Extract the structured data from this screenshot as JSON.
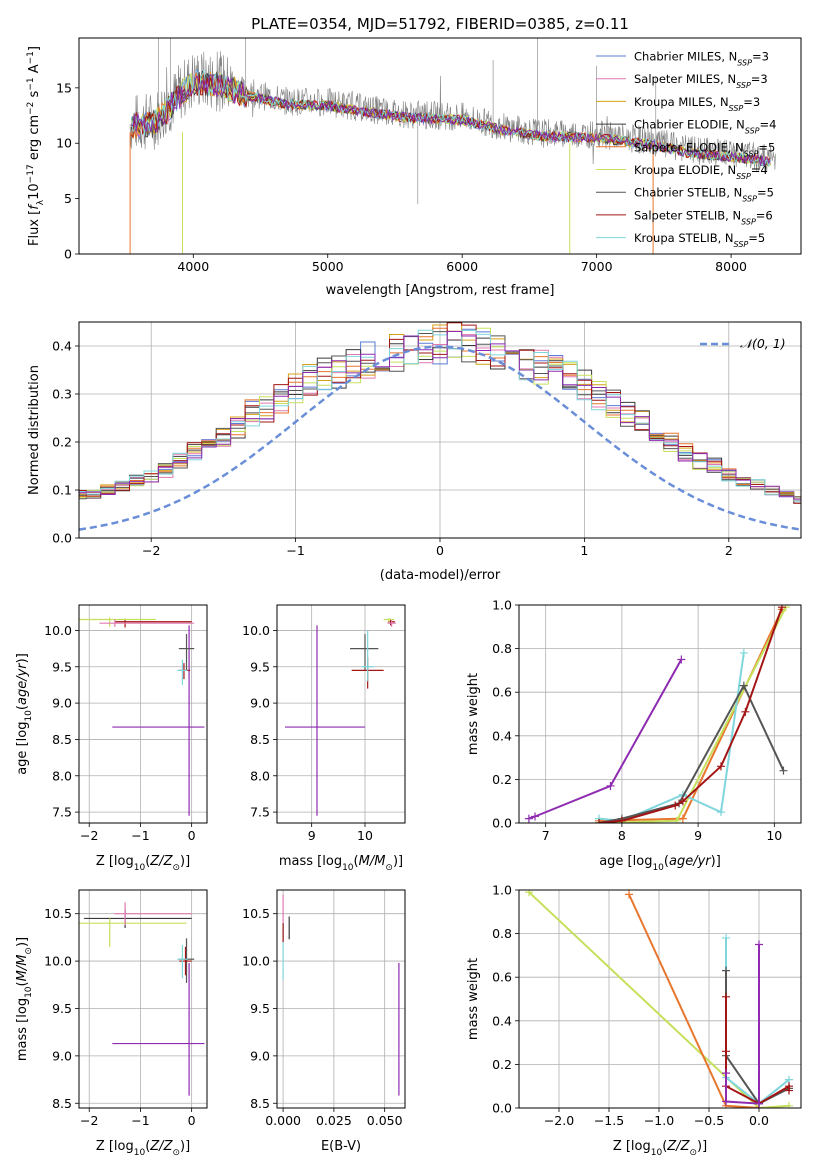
{
  "figure": {
    "title": "PLATE=0354, MJD=51792, FIBERID=0385, z=0.11"
  },
  "colors": {
    "chabrier_miles": "#5b7bd6",
    "salpeter_miles": "#e07ab0",
    "kroupa_miles": "#d4a017",
    "chabrier_elodie": "#3a3a3a",
    "salpeter_elodie": "#e8762c",
    "kroupa_elodie": "#c5e05a",
    "chabrier_stelib": "#555555",
    "salpeter_stelib": "#a31515",
    "kroupa_stelib": "#7fd6dc",
    "purple": "#8e2bb0",
    "gaussian": "#6a8ed8",
    "grid": "#b0b0b0"
  },
  "chart_data": [
    {
      "id": "spectrum",
      "type": "line",
      "title": "PLATE=0354, MJD=51792, FIBERID=0385, z=0.11",
      "xlabel": "wavelength [Angstrom, rest frame]",
      "ylabel": "Flux [f_λ 10^-17 erg cm^-2 s^-1 A^-1]",
      "xlim": [
        3150,
        8520
      ],
      "ylim": [
        0,
        19.5
      ],
      "xticks": [
        4000,
        5000,
        6000,
        7000,
        8000
      ],
      "yticks": [
        0,
        5,
        10,
        15
      ],
      "grid": false,
      "legend_position": "top-right",
      "legend": [
        {
          "label": "Chabrier MILES, N",
          "sub": "SSP",
          "eq": "=3",
          "color": "chabrier_miles"
        },
        {
          "label": "Salpeter MILES, N",
          "sub": "SSP",
          "eq": "=3",
          "color": "salpeter_miles"
        },
        {
          "label": "Kroupa MILES, N",
          "sub": "SSP",
          "eq": "=3",
          "color": "kroupa_miles"
        },
        {
          "label": "Chabrier ELODIE, N",
          "sub": "SSP",
          "eq": "=4",
          "color": "chabrier_elodie"
        },
        {
          "label": "Salpeter ELODIE, N",
          "sub": "SSP",
          "eq": "=5",
          "color": "salpeter_elodie"
        },
        {
          "label": "Kroupa ELODIE, N",
          "sub": "SSP",
          "eq": "=4",
          "color": "kroupa_elodie"
        },
        {
          "label": "Chabrier STELIB, N",
          "sub": "SSP",
          "eq": "=5",
          "color": "chabrier_stelib"
        },
        {
          "label": "Salpeter STELIB, N",
          "sub": "SSP",
          "eq": "=6",
          "color": "salpeter_stelib"
        },
        {
          "label": "Kroupa STELIB, N",
          "sub": "SSP",
          "eq": "=5",
          "color": "kroupa_stelib"
        }
      ],
      "continuum": [
        [
          3530,
          11.8
        ],
        [
          3700,
          12.0
        ],
        [
          3800,
          13.2
        ],
        [
          3900,
          14.6
        ],
        [
          4000,
          15.8
        ],
        [
          4200,
          15.6
        ],
        [
          4400,
          14.6
        ],
        [
          4700,
          13.8
        ],
        [
          5000,
          13.7
        ],
        [
          5300,
          13.1
        ],
        [
          5600,
          12.6
        ],
        [
          6000,
          12.4
        ],
        [
          6300,
          11.5
        ],
        [
          6600,
          10.9
        ],
        [
          7000,
          10.8
        ],
        [
          7400,
          10.2
        ],
        [
          7700,
          9.4
        ],
        [
          8000,
          9.1
        ],
        [
          8300,
          8.6
        ]
      ]
    },
    {
      "id": "residuals",
      "type": "histogram",
      "xlabel": "(data-model)/error",
      "ylabel": "Normed distribution",
      "xlim": [
        -2.5,
        2.5
      ],
      "ylim": [
        0,
        0.45
      ],
      "xticks": [
        -2,
        -1,
        0,
        1,
        2
      ],
      "yticks": [
        0.0,
        0.1,
        0.2,
        0.3,
        0.4
      ],
      "grid": true,
      "legend_position": "top-right",
      "legend": [
        {
          "label": "𝒩(0, 1)",
          "style": "dashed",
          "color": "gaussian"
        }
      ],
      "bin_width": 0.1,
      "mean_counts": [
        0.05,
        0.05,
        0.06,
        0.07,
        0.07,
        0.08,
        0.09,
        0.09,
        0.1,
        0.11,
        0.12,
        0.13,
        0.14,
        0.16,
        0.18,
        0.19,
        0.21,
        0.23,
        0.26,
        0.27,
        0.29,
        0.31,
        0.33,
        0.34,
        0.35,
        0.36,
        0.37,
        0.38,
        0.39,
        0.39,
        0.4,
        0.4,
        0.41,
        0.4,
        0.4,
        0.39,
        0.38,
        0.37,
        0.36,
        0.35,
        0.34,
        0.32,
        0.3,
        0.28,
        0.26,
        0.24,
        0.22,
        0.2,
        0.18,
        0.16,
        0.15,
        0.13,
        0.12,
        0.11,
        0.1,
        0.09,
        0.08,
        0.08,
        0.07,
        0.06,
        0.06,
        0.05,
        0.05,
        0.05
      ],
      "series_count": 10
    },
    {
      "id": "age_vs_Z",
      "type": "errorbar",
      "xlabel": "Z [log₁₀(Z/Z⊙)]",
      "ylabel": "age  [log₁₀(age/yr)]",
      "xlim": [
        -2.2,
        0.3
      ],
      "ylim": [
        7.35,
        10.35
      ],
      "xticks": [
        -2,
        -1,
        0
      ],
      "yticks": [
        7.5,
        8.0,
        8.5,
        9.0,
        9.5,
        10.0
      ],
      "points": [
        {
          "x": -0.05,
          "y": 8.67,
          "xerr": [
            1.5,
            0.3
          ],
          "yerr": [
            1.22,
            1.4
          ],
          "color": "purple"
        },
        {
          "x": -0.1,
          "y": 9.75,
          "xerr": [
            0.15,
            0.15
          ],
          "yerr": [
            0.3,
            0.2
          ],
          "color": "chabrier_stelib"
        },
        {
          "x": -0.15,
          "y": 9.45,
          "xerr": [
            0.1,
            0.12
          ],
          "yerr": [
            0.12,
            0.1
          ],
          "color": "salpeter_stelib"
        },
        {
          "x": -0.18,
          "y": 9.45,
          "xerr": [
            0.1,
            0.1
          ],
          "yerr": [
            0.2,
            0.15
          ],
          "color": "kroupa_stelib"
        },
        {
          "x": -1.3,
          "y": 10.12,
          "xerr": [
            0.2,
            1.3
          ],
          "yerr": [
            0.08,
            0.04
          ],
          "color": "salpeter_stelib"
        },
        {
          "x": -1.6,
          "y": 10.15,
          "xerr": [
            0.6,
            0.9
          ],
          "yerr": [
            0.1,
            0.03
          ],
          "color": "kroupa_elodie"
        },
        {
          "x": -1.5,
          "y": 10.1,
          "xerr": [
            0.3,
            1.55
          ],
          "yerr": [
            0.05,
            0.05
          ],
          "color": "salpeter_miles"
        }
      ]
    },
    {
      "id": "age_vs_mass",
      "type": "errorbar",
      "xlabel": "mass [log₁₀(M/M⊙)]",
      "ylabel": "",
      "xlim": [
        8.35,
        10.75
      ],
      "ylim": [
        7.35,
        10.35
      ],
      "xticks": [
        9,
        10
      ],
      "yticks": [
        7.5,
        8.0,
        8.5,
        9.0,
        9.5,
        10.0
      ],
      "points": [
        {
          "x": 9.1,
          "y": 8.67,
          "xerr": [
            0.6,
            0.9
          ],
          "yerr": [
            1.22,
            1.4
          ],
          "color": "purple"
        },
        {
          "x": 10.0,
          "y": 9.75,
          "xerr": [
            0.28,
            0.25
          ],
          "yerr": [
            0.3,
            0.2
          ],
          "color": "chabrier_stelib"
        },
        {
          "x": 10.05,
          "y": 9.45,
          "xerr": [
            0.3,
            0.3
          ],
          "yerr": [
            0.25,
            0.18
          ],
          "color": "salpeter_stelib"
        },
        {
          "x": 10.05,
          "y": 9.5,
          "xerr": [
            0.12,
            0.12
          ],
          "yerr": [
            0.2,
            0.5
          ],
          "color": "kroupa_stelib"
        },
        {
          "x": 10.48,
          "y": 10.12,
          "xerr": [
            0.05,
            0.08
          ],
          "yerr": [
            0.05,
            0.04
          ],
          "color": "salpeter_stelib"
        },
        {
          "x": 10.45,
          "y": 10.15,
          "xerr": [
            0.1,
            0.1
          ],
          "yerr": [
            0.04,
            0.02
          ],
          "color": "kroupa_elodie"
        },
        {
          "x": 10.5,
          "y": 10.1,
          "xerr": [
            0.08,
            0.08
          ],
          "yerr": [
            0.05,
            0.04
          ],
          "color": "salpeter_miles"
        }
      ]
    },
    {
      "id": "weight_vs_age",
      "type": "line",
      "xlabel": "age  [log₁₀(age/yr)]",
      "ylabel": "mass weight",
      "xlim": [
        6.65,
        10.35
      ],
      "ylim": [
        0,
        1
      ],
      "xticks": [
        7,
        8,
        9,
        10
      ],
      "yticks": [
        0.0,
        0.2,
        0.4,
        0.6,
        0.8,
        1.0
      ],
      "series": [
        {
          "color": "purple",
          "x": [
            6.78,
            6.86,
            7.85,
            8.78
          ],
          "y": [
            0.02,
            0.03,
            0.17,
            0.75
          ]
        },
        {
          "color": "salpeter_elodie",
          "x": [
            7.7,
            8.8,
            10.1
          ],
          "y": [
            0.01,
            0.02,
            0.98
          ]
        },
        {
          "color": "kroupa_elodie",
          "x": [
            7.7,
            8.72,
            10.15
          ],
          "y": [
            0.0,
            0.01,
            0.99
          ]
        },
        {
          "color": "kroupa_stelib",
          "x": [
            7.7,
            8.0,
            8.8,
            9.3,
            9.6
          ],
          "y": [
            0.02,
            0.01,
            0.13,
            0.05,
            0.78
          ]
        },
        {
          "color": "chabrier_stelib",
          "x": [
            7.7,
            8.0,
            8.75,
            9.6,
            10.12
          ],
          "y": [
            0.0,
            0.02,
            0.09,
            0.63,
            0.24
          ]
        },
        {
          "color": "salpeter_stelib",
          "x": [
            7.7,
            8.0,
            8.7,
            8.8,
            9.3,
            9.62,
            10.1
          ],
          "y": [
            0.0,
            0.01,
            0.08,
            0.1,
            0.26,
            0.51,
            0.99
          ]
        }
      ]
    },
    {
      "id": "mass_vs_Z",
      "type": "errorbar",
      "xlabel": "Z [log₁₀(Z/Z⊙)]",
      "ylabel": "mass [log₁₀(M/M⊙)]",
      "xlim": [
        -2.2,
        0.3
      ],
      "ylim": [
        8.45,
        10.75
      ],
      "xticks": [
        -2,
        -1,
        0
      ],
      "yticks": [
        8.5,
        9.0,
        9.5,
        10.0,
        10.5
      ],
      "points": [
        {
          "x": -0.05,
          "y": 9.13,
          "xerr": [
            1.5,
            0.3
          ],
          "yerr": [
            0.55,
            0.85
          ],
          "color": "purple"
        },
        {
          "x": -0.1,
          "y": 10.02,
          "xerr": [
            0.15,
            0.15
          ],
          "yerr": [
            0.25,
            0.22
          ],
          "color": "chabrier_stelib"
        },
        {
          "x": -0.12,
          "y": 10.0,
          "xerr": [
            0.12,
            0.12
          ],
          "yerr": [
            0.15,
            0.15
          ],
          "color": "salpeter_stelib"
        },
        {
          "x": -0.18,
          "y": 10.02,
          "xerr": [
            0.1,
            0.1
          ],
          "yerr": [
            0.2,
            0.15
          ],
          "color": "kroupa_stelib"
        },
        {
          "x": -1.3,
          "y": 10.45,
          "xerr": [
            0.8,
            1.3
          ],
          "yerr": [
            0.1,
            0.1
          ],
          "color": "chabrier_elodie"
        },
        {
          "x": -1.6,
          "y": 10.4,
          "xerr": [
            0.6,
            1.5
          ],
          "yerr": [
            0.25,
            0.05
          ],
          "color": "kroupa_elodie"
        },
        {
          "x": -1.3,
          "y": 10.5,
          "xerr": [
            0.2,
            1.3
          ],
          "yerr": [
            0.12,
            0.12
          ],
          "color": "salpeter_miles"
        }
      ]
    },
    {
      "id": "mass_vs_ebv",
      "type": "errorbar",
      "xlabel": "E(B-V)",
      "ylabel": "",
      "xlim": [
        -0.003,
        0.06
      ],
      "ylim": [
        8.45,
        10.75
      ],
      "xticks": [
        0.0,
        0.025,
        0.05
      ],
      "yticks": [
        8.5,
        9.0,
        9.5,
        10.0,
        10.5
      ],
      "xtick_labels": [
        "0.000",
        "0.025",
        "0.050"
      ],
      "points": [
        {
          "x": 0.057,
          "y": 9.13,
          "xerr": [
            0,
            0
          ],
          "yerr": [
            0.55,
            0.85
          ],
          "color": "purple"
        },
        {
          "x": 0.0,
          "y": 10.45,
          "xerr": [
            0,
            0
          ],
          "yerr": [
            0.2,
            0.25
          ],
          "color": "salpeter_miles"
        },
        {
          "x": 0.0,
          "y": 10.1,
          "xerr": [
            0,
            0
          ],
          "yerr": [
            0.3,
            0.3
          ],
          "color": "kroupa_stelib"
        },
        {
          "x": 0.0,
          "y": 10.3,
          "xerr": [
            0,
            0
          ],
          "yerr": [
            0.1,
            0.1
          ],
          "color": "salpeter_stelib"
        },
        {
          "x": 0.003,
          "y": 10.35,
          "xerr": [
            0,
            0
          ],
          "yerr": [
            0.12,
            0.12
          ],
          "color": "chabrier_elodie"
        }
      ]
    },
    {
      "id": "weight_vs_Z",
      "type": "line",
      "xlabel": "Z [log₁₀(Z/Z⊙)]",
      "ylabel": "mass weight",
      "xlim": [
        -2.4,
        0.42
      ],
      "ylim": [
        0,
        1
      ],
      "xticks": [
        -2.0,
        -1.5,
        -1.0,
        -0.5,
        0.0
      ],
      "yticks": [
        0.0,
        0.2,
        0.4,
        0.6,
        0.8,
        1.0
      ],
      "xtick_labels": [
        "−2.0",
        "−1.5",
        "−1.0",
        "−0.5",
        "0.0"
      ],
      "series": [
        {
          "color": "kroupa_elodie",
          "x": [
            -2.3,
            0.0,
            0.3
          ],
          "y": [
            0.99,
            0.0,
            0.01
          ]
        },
        {
          "color": "salpeter_elodie",
          "x": [
            -1.3,
            -0.33,
            0.0
          ],
          "y": [
            0.98,
            0.01,
            0.0
          ]
        },
        {
          "color": "kroupa_stelib",
          "x": [
            -0.33,
            -0.33,
            0.0,
            0.3
          ],
          "y": [
            0.78,
            0.14,
            0.02,
            0.13
          ]
        },
        {
          "color": "chabrier_stelib",
          "x": [
            -0.33,
            -0.33,
            0.0,
            0.3
          ],
          "y": [
            0.63,
            0.24,
            0.02,
            0.09
          ]
        },
        {
          "color": "salpeter_stelib",
          "x": [
            -0.33,
            -0.33,
            -0.33,
            0.0,
            0.3,
            0.3
          ],
          "y": [
            0.51,
            0.26,
            0.1,
            0.02,
            0.1,
            0.08
          ]
        },
        {
          "color": "purple",
          "x": [
            -0.33,
            -0.33,
            0.0,
            0.0
          ],
          "y": [
            0.16,
            0.03,
            0.02,
            0.75
          ]
        }
      ]
    }
  ]
}
